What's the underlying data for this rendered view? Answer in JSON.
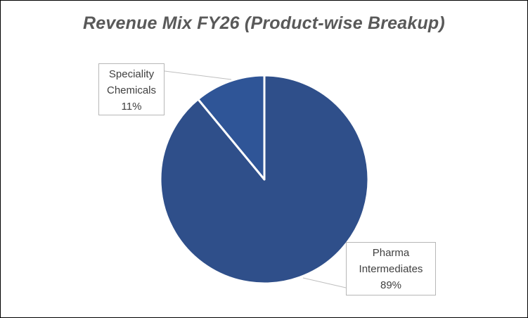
{
  "chart_data": {
    "type": "pie",
    "title": "Revenue Mix FY26 (Product-wise Breakup)",
    "slices": [
      {
        "label_lines": [
          "Pharma",
          "Intermediates"
        ],
        "value": 89,
        "value_text": "89%",
        "color": "#2f4f8a"
      },
      {
        "label_lines": [
          "Speciality",
          "Chemicals"
        ],
        "value": 11,
        "value_text": "11%",
        "color": "#2f5597"
      }
    ],
    "slice_border_color": "#ffffff",
    "leader_line_color": "#bfbfbf"
  }
}
